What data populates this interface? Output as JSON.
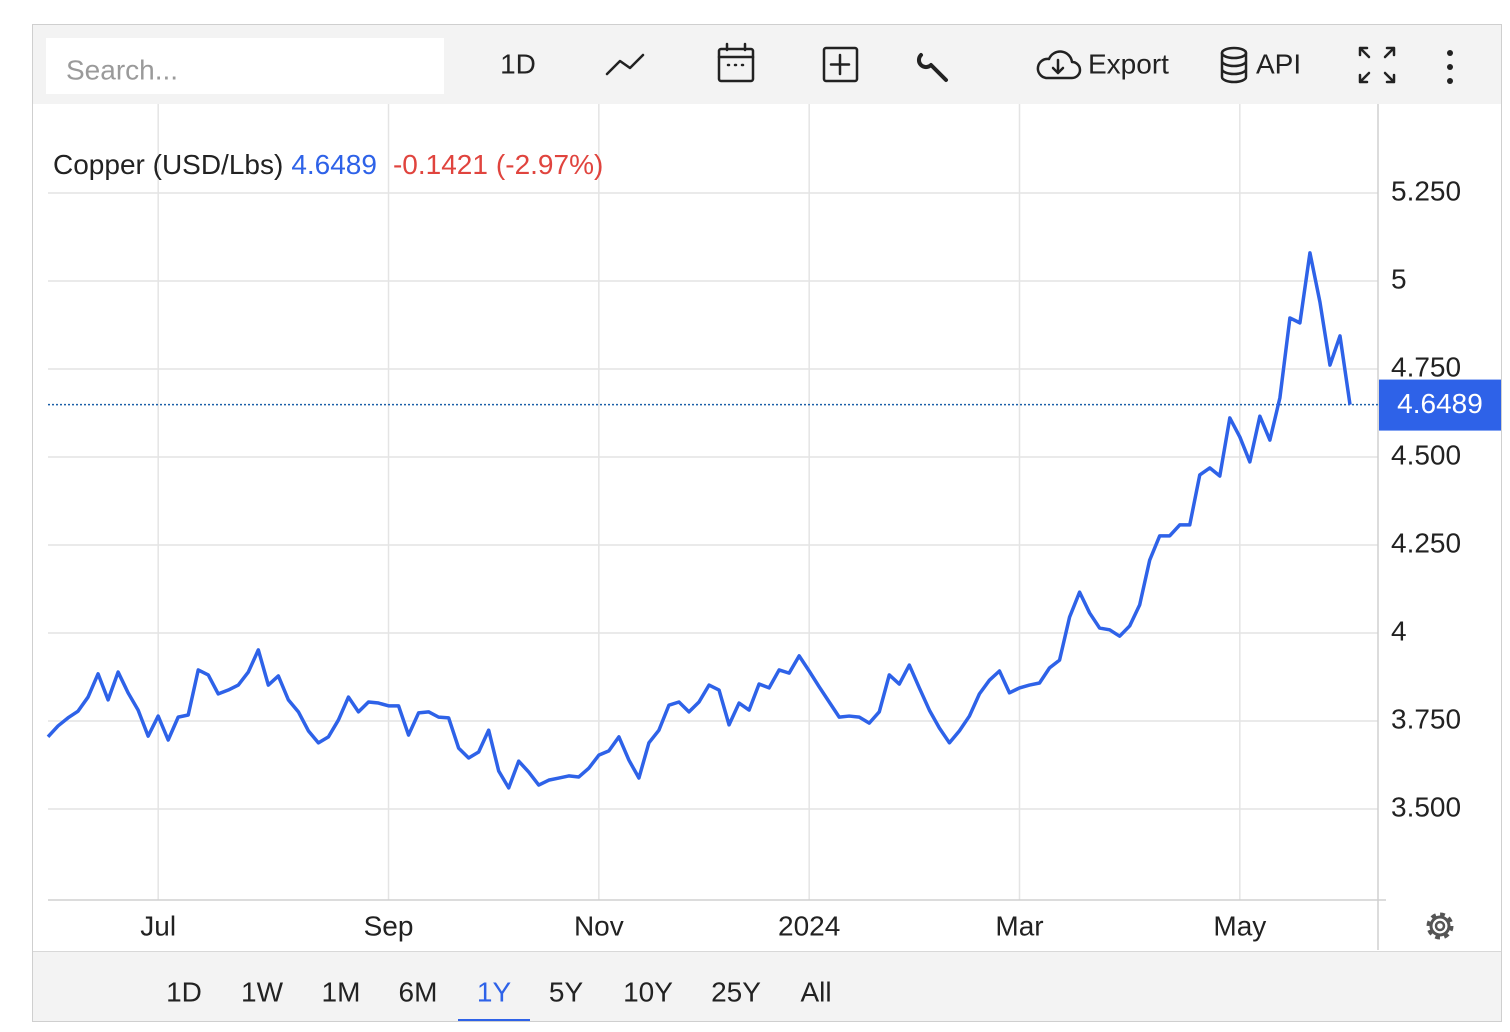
{
  "toolbar": {
    "search_placeholder": "Search...",
    "interval": "1D",
    "export": "Export",
    "api": "API"
  },
  "ranges": {
    "items": [
      "1D",
      "1W",
      "1M",
      "6M",
      "1Y",
      "5Y",
      "10Y",
      "25Y",
      "All"
    ],
    "selected": 4,
    "selected_color": "#2e62e8"
  },
  "chart_data": {
    "type": "line",
    "change": -0.1421,
    "change_label": "(-2.97%)",
    "change_color": "#e0443e",
    "categories": [
      null,
      null,
      null,
      null,
      null,
      null,
      null,
      null,
      null,
      null,
      null,
      "Jul",
      null,
      null,
      null,
      null,
      null,
      null,
      null,
      null,
      null,
      null,
      null,
      null,
      null,
      null,
      null,
      null,
      null,
      null,
      null,
      null,
      null,
      null,
      "Sep",
      null,
      null,
      null,
      null,
      null,
      null,
      null,
      null,
      null,
      null,
      null,
      null,
      null,
      null,
      null,
      null,
      null,
      null,
      null,
      null,
      "Nov",
      null,
      null,
      null,
      null,
      null,
      null,
      null,
      null,
      null,
      null,
      null,
      null,
      null,
      null,
      null,
      null,
      null,
      null,
      null,
      null,
      "2024",
      null,
      null,
      null,
      null,
      null,
      null,
      null,
      null,
      null,
      null,
      null,
      null,
      null,
      null,
      null,
      null,
      null,
      null,
      null,
      null,
      "Mar",
      null,
      null,
      null,
      null,
      null,
      null,
      null,
      null,
      null,
      null,
      null,
      null,
      null,
      null,
      null,
      null,
      null,
      null,
      null,
      null,
      null,
      "May",
      null,
      null,
      null,
      null,
      null,
      null,
      null,
      null,
      null,
      null,
      null
    ],
    "series": [
      {
        "name": "Copper (USD/Lbs)",
        "color": "#2e62e8",
        "values": [
          3.705,
          3.736,
          3.759,
          3.778,
          3.818,
          3.884,
          3.81,
          3.889,
          3.83,
          3.781,
          3.707,
          3.764,
          3.696,
          3.761,
          3.767,
          3.895,
          3.881,
          3.827,
          3.838,
          3.852,
          3.889,
          3.952,
          3.852,
          3.878,
          3.81,
          3.776,
          3.722,
          3.688,
          3.705,
          3.753,
          3.818,
          3.776,
          3.804,
          3.801,
          3.793,
          3.793,
          3.71,
          3.773,
          3.776,
          3.761,
          3.759,
          3.673,
          3.645,
          3.662,
          3.724,
          3.608,
          3.56,
          3.636,
          3.605,
          3.568,
          3.582,
          3.588,
          3.594,
          3.591,
          3.616,
          3.653,
          3.665,
          3.705,
          3.639,
          3.588,
          3.688,
          3.724,
          3.795,
          3.804,
          3.776,
          3.804,
          3.852,
          3.838,
          3.739,
          3.801,
          3.781,
          3.855,
          3.844,
          3.895,
          3.886,
          3.935,
          3.892,
          3.847,
          3.804,
          3.761,
          3.764,
          3.761,
          3.744,
          3.776,
          3.881,
          3.855,
          3.909,
          3.844,
          3.781,
          3.73,
          3.688,
          3.722,
          3.764,
          3.827,
          3.866,
          3.892,
          3.83,
          3.844,
          3.852,
          3.858,
          3.901,
          3.923,
          4.045,
          4.116,
          4.057,
          4.014,
          4.009,
          3.991,
          4.02,
          4.08,
          4.207,
          4.276,
          4.276,
          4.307,
          4.307,
          4.449,
          4.469,
          4.446,
          4.611,
          4.557,
          4.486,
          4.616,
          4.548,
          4.668,
          4.895,
          4.881,
          5.08,
          4.94,
          4.761,
          4.844,
          4.6489
        ]
      }
    ],
    "ylim": [
      3.2415,
      5.5028
    ],
    "yticks": [
      {
        "value": 3.5,
        "label": "3.500"
      },
      {
        "value": 3.75,
        "label": "3.750"
      },
      4,
      {
        "value": 4.25,
        "label": "4.250"
      },
      {
        "value": 4.5,
        "label": "4.500"
      },
      {
        "value": 4.75,
        "label": "4.750"
      },
      5,
      {
        "value": 5.25,
        "label": "5.250"
      }
    ],
    "grid": true,
    "last_value_line": true
  }
}
